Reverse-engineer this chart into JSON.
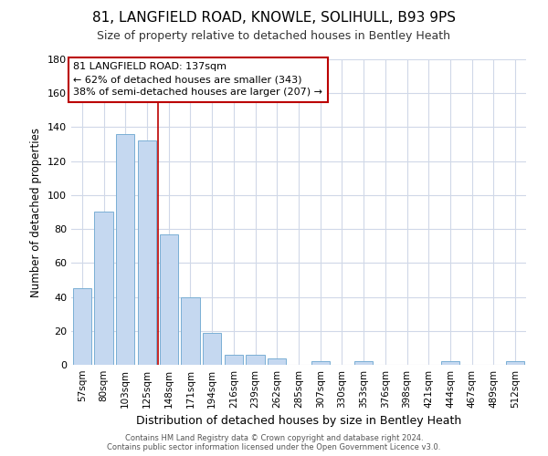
{
  "title_line1": "81, LANGFIELD ROAD, KNOWLE, SOLIHULL, B93 9PS",
  "title_line2": "Size of property relative to detached houses in Bentley Heath",
  "xlabel": "Distribution of detached houses by size in Bentley Heath",
  "ylabel": "Number of detached properties",
  "categories": [
    "57sqm",
    "80sqm",
    "103sqm",
    "125sqm",
    "148sqm",
    "171sqm",
    "194sqm",
    "216sqm",
    "239sqm",
    "262sqm",
    "285sqm",
    "307sqm",
    "330sqm",
    "353sqm",
    "376sqm",
    "398sqm",
    "421sqm",
    "444sqm",
    "467sqm",
    "489sqm",
    "512sqm"
  ],
  "values": [
    45,
    90,
    136,
    132,
    77,
    40,
    19,
    6,
    6,
    4,
    0,
    2,
    0,
    2,
    0,
    0,
    0,
    2,
    0,
    0,
    2
  ],
  "bar_color": "#c5d8f0",
  "bar_edge_color": "#7aafd4",
  "vline_x": 3.5,
  "vline_color": "#bb0000",
  "annotation_text": "81 LANGFIELD ROAD: 137sqm\n← 62% of detached houses are smaller (343)\n38% of semi-detached houses are larger (207) →",
  "annotation_box_color": "#ffffff",
  "annotation_box_edge_color": "#bb0000",
  "ylim": [
    0,
    180
  ],
  "yticks": [
    0,
    20,
    40,
    60,
    80,
    100,
    120,
    140,
    160,
    180
  ],
  "background_color": "#ffffff",
  "grid_color": "#d0d8e8",
  "footer_line1": "Contains HM Land Registry data © Crown copyright and database right 2024.",
  "footer_line2": "Contains public sector information licensed under the Open Government Licence v3.0."
}
